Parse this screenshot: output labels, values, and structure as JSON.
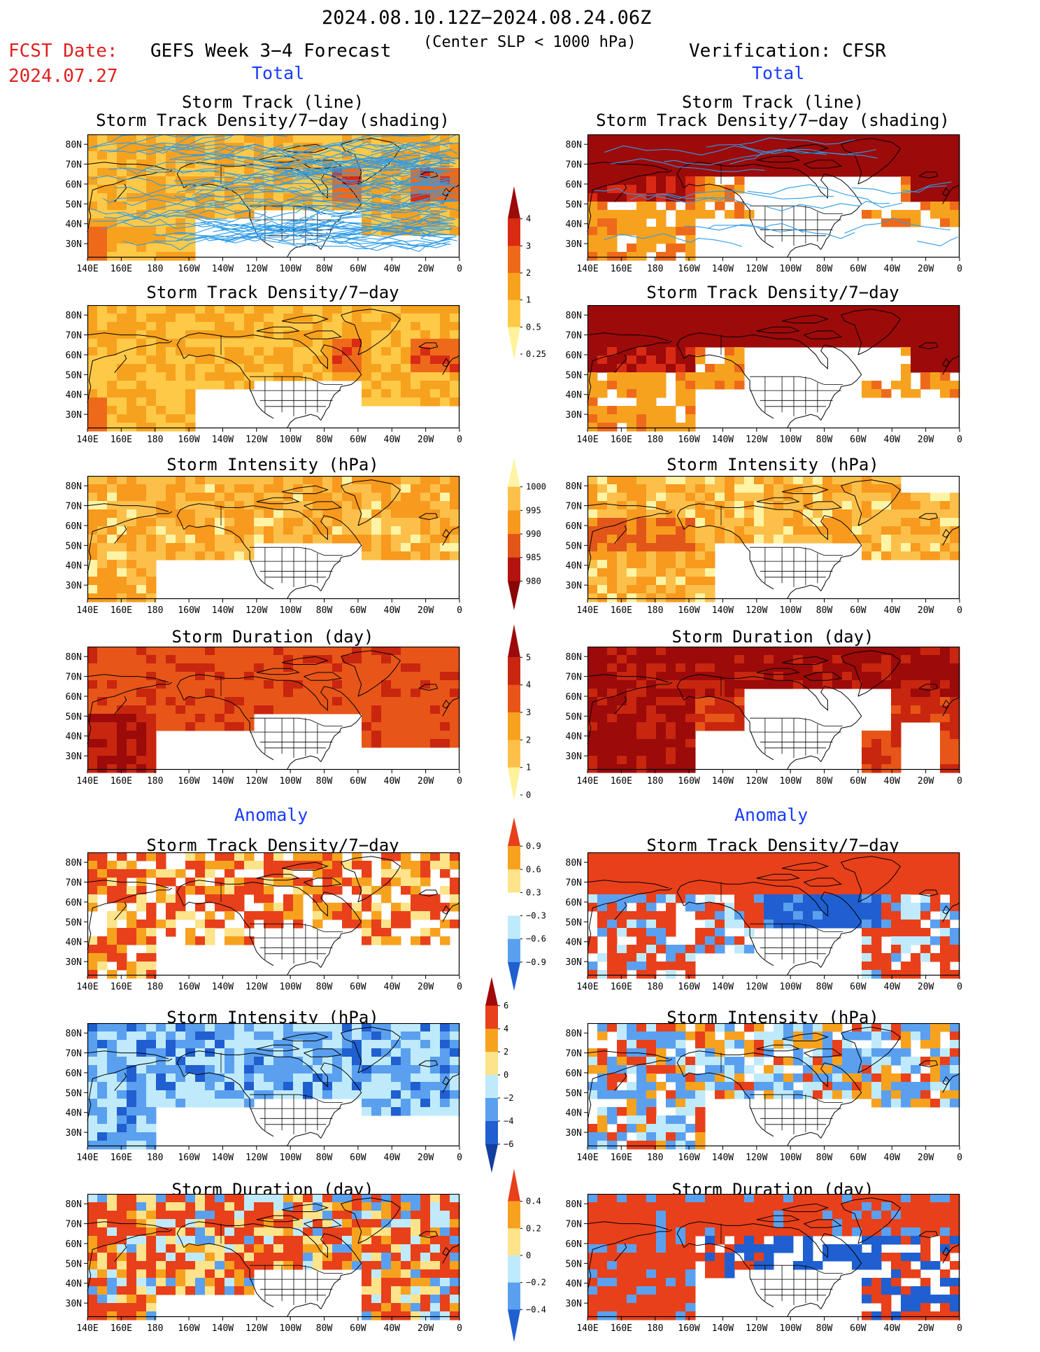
{
  "header": {
    "date_range": "2024.08.10.12Z−2024.08.24.06Z",
    "criterion": "(Center SLP < 1000 hPa)",
    "fcst_label": "FCST Date:",
    "fcst_date": "2024.07.27",
    "left_title": "GEFS Week 3−4 Forecast",
    "right_title": "Verification: CFSR"
  },
  "sections": {
    "total_left": "Total",
    "total_right": "Total",
    "anomaly_left": "Anomaly",
    "anomaly_right": "Anomaly"
  },
  "panel_titles": {
    "track_line": "Storm Track (line)",
    "track_density_shading": "Storm Track Density/7−day (shading)",
    "track_density": "Storm Track Density/7−day",
    "intensity": "Storm Intensity (hPa)",
    "duration": "Storm Duration (day)"
  },
  "map_axes": {
    "lon_ticks": [
      "140E",
      "160E",
      "180",
      "160W",
      "140W",
      "120W",
      "100W",
      "80W",
      "60W",
      "40W",
      "20W",
      "0"
    ],
    "lat_ticks": [
      "80N",
      "70N",
      "60N",
      "50N",
      "40N",
      "30N"
    ]
  },
  "colorbars": {
    "density_total": {
      "labels": [
        "4",
        "3",
        "2",
        "1",
        "0.5",
        "0.25"
      ],
      "colors": [
        "#9c0a0a",
        "#d92a14",
        "#ee6a1a",
        "#f7a21e",
        "#ffc948",
        "#fff29a"
      ]
    },
    "intensity_total": {
      "labels": [
        "1000",
        "995",
        "990",
        "985",
        "980"
      ],
      "colors": [
        "#fff4a6",
        "#fcc04a",
        "#f79a1e",
        "#e2561a",
        "#b4140f",
        "#8a0505"
      ]
    },
    "duration_total": {
      "labels": [
        "5",
        "4",
        "3",
        "2",
        "1",
        "0"
      ],
      "colors": [
        "#9c0a0a",
        "#c8260f",
        "#e85518",
        "#f7a21e",
        "#fcc04a",
        "#fff29a"
      ]
    },
    "density_anom": {
      "labels": [
        "0.9",
        "0.6",
        "0.3",
        "−0.3",
        "−0.6",
        "−0.9"
      ],
      "colors": [
        "#e8401a",
        "#f7a21e",
        "#fde38a",
        "#ffffff",
        "#bfeafb",
        "#5aa0ef",
        "#1f5fd0"
      ]
    },
    "intensity_anom": {
      "labels": [
        "6",
        "4",
        "2",
        "0",
        "−2",
        "−4",
        "−6"
      ],
      "colors": [
        "#a00a0a",
        "#e8401a",
        "#f7a21e",
        "#fde38a",
        "#bfeafb",
        "#5aa0ef",
        "#1f5fd0",
        "#123fa0"
      ]
    },
    "duration_anom": {
      "labels": [
        "0.4",
        "0.2",
        "0",
        "−0.2",
        "−0.4"
      ],
      "colors": [
        "#e8401a",
        "#f7a21e",
        "#fde38a",
        "#bfeafb",
        "#5aa0ef",
        "#1f5fd0"
      ]
    }
  },
  "palette": {
    "storm_track_line": "#2e9ce8",
    "coastline": "#000000"
  }
}
